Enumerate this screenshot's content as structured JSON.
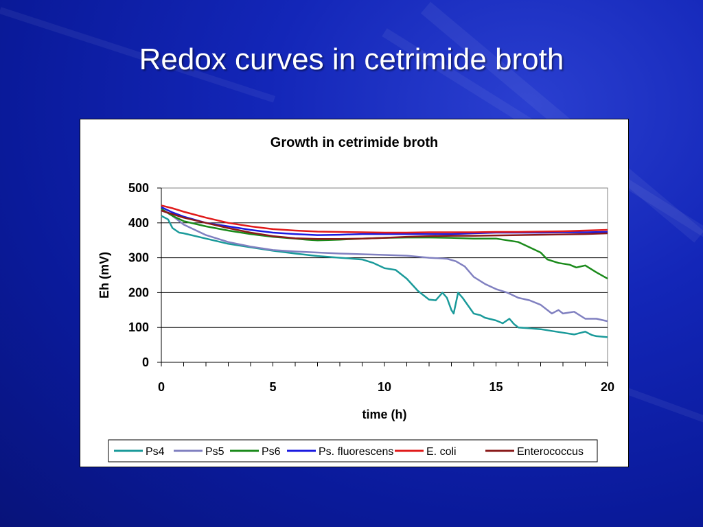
{
  "slide": {
    "title": "Redox curves in cetrimide broth"
  },
  "chart_data": {
    "type": "line",
    "title": "Growth in cetrimide broth",
    "xlabel": "time (h)",
    "ylabel": "Eh (mV)",
    "xlim": [
      0,
      20
    ],
    "ylim": [
      0,
      500
    ],
    "xticks": [
      0,
      5,
      10,
      15,
      20
    ],
    "yticks": [
      0,
      100,
      200,
      300,
      400,
      500
    ],
    "grid": "horizontal",
    "legend_position": "bottom",
    "series": [
      {
        "name": "Ps4",
        "color": "#1a9a9a",
        "points": [
          [
            0,
            420
          ],
          [
            0.3,
            410
          ],
          [
            0.5,
            385
          ],
          [
            0.8,
            372
          ],
          [
            1,
            370
          ],
          [
            2,
            355
          ],
          [
            3,
            340
          ],
          [
            4,
            330
          ],
          [
            5,
            320
          ],
          [
            6,
            312
          ],
          [
            7,
            305
          ],
          [
            8,
            300
          ],
          [
            9,
            295
          ],
          [
            9.5,
            285
          ],
          [
            10,
            270
          ],
          [
            10.5,
            265
          ],
          [
            11,
            240
          ],
          [
            11.5,
            205
          ],
          [
            12,
            180
          ],
          [
            12.3,
            178
          ],
          [
            12.6,
            200
          ],
          [
            12.8,
            185
          ],
          [
            13,
            150
          ],
          [
            13.1,
            140
          ],
          [
            13.3,
            200
          ],
          [
            13.5,
            185
          ],
          [
            14,
            140
          ],
          [
            14.3,
            135
          ],
          [
            14.5,
            128
          ],
          [
            15,
            120
          ],
          [
            15.3,
            112
          ],
          [
            15.6,
            125
          ],
          [
            15.8,
            110
          ],
          [
            16,
            100
          ],
          [
            17,
            95
          ],
          [
            17.5,
            90
          ],
          [
            18,
            85
          ],
          [
            18.5,
            80
          ],
          [
            19,
            88
          ],
          [
            19.3,
            78
          ],
          [
            19.5,
            75
          ],
          [
            20,
            72
          ]
        ]
      },
      {
        "name": "Ps5",
        "color": "#8080c0",
        "points": [
          [
            0,
            440
          ],
          [
            0.5,
            420
          ],
          [
            1,
            395
          ],
          [
            2,
            365
          ],
          [
            3,
            345
          ],
          [
            4,
            332
          ],
          [
            5,
            322
          ],
          [
            6,
            318
          ],
          [
            7,
            315
          ],
          [
            8,
            312
          ],
          [
            9,
            310
          ],
          [
            10,
            308
          ],
          [
            11,
            306
          ],
          [
            12,
            300
          ],
          [
            12.8,
            297
          ],
          [
            13.2,
            290
          ],
          [
            13.6,
            275
          ],
          [
            14,
            245
          ],
          [
            14.5,
            225
          ],
          [
            15,
            210
          ],
          [
            15.5,
            200
          ],
          [
            16,
            185
          ],
          [
            16.5,
            178
          ],
          [
            17,
            165
          ],
          [
            17.5,
            140
          ],
          [
            17.8,
            150
          ],
          [
            18,
            140
          ],
          [
            18.5,
            145
          ],
          [
            19,
            125
          ],
          [
            19.5,
            125
          ],
          [
            20,
            118
          ]
        ]
      },
      {
        "name": "Ps6",
        "color": "#1a8a1a",
        "points": [
          [
            0,
            440
          ],
          [
            0.5,
            420
          ],
          [
            1,
            405
          ],
          [
            2,
            390
          ],
          [
            3,
            378
          ],
          [
            4,
            368
          ],
          [
            5,
            360
          ],
          [
            6,
            355
          ],
          [
            6.5,
            352
          ],
          [
            7,
            350
          ],
          [
            8,
            352
          ],
          [
            9,
            355
          ],
          [
            10,
            357
          ],
          [
            11,
            358
          ],
          [
            12,
            358
          ],
          [
            13,
            357
          ],
          [
            14,
            355
          ],
          [
            15,
            355
          ],
          [
            16,
            345
          ],
          [
            16.5,
            330
          ],
          [
            17,
            315
          ],
          [
            17.3,
            295
          ],
          [
            17.8,
            285
          ],
          [
            18.3,
            280
          ],
          [
            18.6,
            272
          ],
          [
            19,
            278
          ],
          [
            19.5,
            258
          ],
          [
            20,
            240
          ]
        ]
      },
      {
        "name": "Ps. fluorescens",
        "color": "#1a1ae0",
        "points": [
          [
            0,
            445
          ],
          [
            0.5,
            430
          ],
          [
            1,
            418
          ],
          [
            2,
            400
          ],
          [
            3,
            390
          ],
          [
            4,
            380
          ],
          [
            5,
            372
          ],
          [
            6,
            368
          ],
          [
            7,
            365
          ],
          [
            8,
            366
          ],
          [
            9,
            368
          ],
          [
            10,
            368
          ],
          [
            11,
            368
          ],
          [
            12,
            368
          ],
          [
            13,
            368
          ],
          [
            14,
            370
          ],
          [
            15,
            372
          ],
          [
            16,
            372
          ],
          [
            17,
            372
          ],
          [
            18,
            373
          ],
          [
            19,
            373
          ],
          [
            20,
            374
          ]
        ]
      },
      {
        "name": "E. coli",
        "color": "#e01a1a",
        "points": [
          [
            0,
            450
          ],
          [
            0.5,
            442
          ],
          [
            1,
            432
          ],
          [
            2,
            415
          ],
          [
            3,
            400
          ],
          [
            4,
            390
          ],
          [
            5,
            382
          ],
          [
            6,
            378
          ],
          [
            7,
            375
          ],
          [
            8,
            374
          ],
          [
            9,
            373
          ],
          [
            10,
            372
          ],
          [
            11,
            372
          ],
          [
            12,
            373
          ],
          [
            13,
            373
          ],
          [
            14,
            373
          ],
          [
            15,
            374
          ],
          [
            16,
            374
          ],
          [
            17,
            375
          ],
          [
            18,
            376
          ],
          [
            19,
            378
          ],
          [
            20,
            380
          ]
        ]
      },
      {
        "name": "Enterococcus",
        "color": "#8a1a1a",
        "points": [
          [
            0,
            435
          ],
          [
            0.5,
            425
          ],
          [
            1,
            415
          ],
          [
            2,
            400
          ],
          [
            3,
            385
          ],
          [
            4,
            372
          ],
          [
            5,
            362
          ],
          [
            6,
            356
          ],
          [
            7,
            354
          ],
          [
            8,
            354
          ],
          [
            9,
            355
          ],
          [
            10,
            357
          ],
          [
            11,
            360
          ],
          [
            12,
            362
          ],
          [
            13,
            363
          ],
          [
            14,
            363
          ],
          [
            15,
            364
          ],
          [
            16,
            365
          ],
          [
            17,
            366
          ],
          [
            18,
            367
          ],
          [
            19,
            368
          ],
          [
            20,
            370
          ]
        ]
      }
    ]
  }
}
